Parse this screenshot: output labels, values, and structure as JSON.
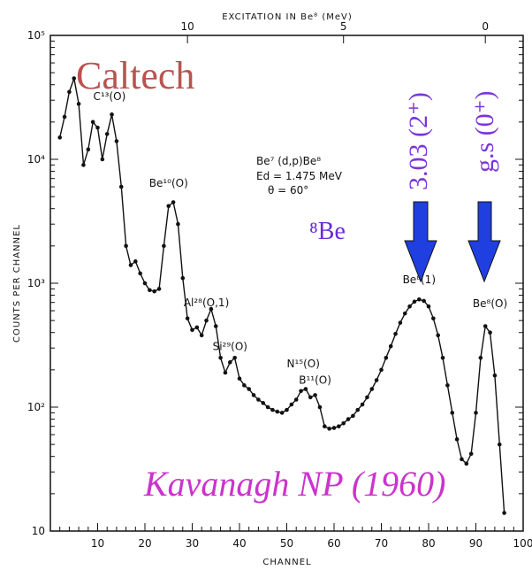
{
  "chart_data": {
    "type": "scatter",
    "xlabel": "CHANNEL",
    "ylabel": "COUNTS PER CHANNEL",
    "top_axis_label": "EXCITATION IN Be⁸ (MeV)",
    "xlim": [
      0,
      100
    ],
    "ylim": [
      10,
      100000
    ],
    "y_scale": "log",
    "x_ticks": [
      "10",
      "20",
      "30",
      "40",
      "50",
      "60",
      "70",
      "80",
      "90",
      "100"
    ],
    "y_ticks": [
      "10",
      "10²",
      "10³",
      "10⁴",
      "10⁵"
    ],
    "top_ticks": [
      {
        "label": "10",
        "channel": 29
      },
      {
        "label": "5",
        "channel": 62
      },
      {
        "label": "0",
        "channel": 92
      }
    ],
    "reaction": {
      "line1": "Be⁷ (d,p)Be⁸",
      "line2": "Ed = 1.475 MeV",
      "line3": "θ = 60°"
    },
    "peak_labels": [
      {
        "text": "C¹³(O)",
        "x": 12.5,
        "y": 30000
      },
      {
        "text": "Be¹⁰(O)",
        "x": 25,
        "y": 6000
      },
      {
        "text": "Al²⁸(O,1)",
        "x": 33,
        "y": 650
      },
      {
        "text": "Si²⁹(O)",
        "x": 38,
        "y": 290
      },
      {
        "text": "N¹⁵(O)",
        "x": 53.5,
        "y": 210
      },
      {
        "text": "B¹¹(O)",
        "x": 56,
        "y": 155
      },
      {
        "text": "Be⁸(1)",
        "x": 78,
        "y": 1000
      },
      {
        "text": "Be⁸(O)",
        "x": 93,
        "y": 640
      }
    ],
    "annotations": {
      "institution": "Caltech",
      "citation": "Kavanagh  NP (1960)",
      "nucleus": "⁸Be",
      "level_1": "3.03 (2⁺)",
      "level_2": "g.s (0⁺)"
    },
    "series": [
      {
        "values": [
          [
            2,
            15000
          ],
          [
            3,
            22000
          ],
          [
            4,
            35000
          ],
          [
            5,
            45000
          ],
          [
            6,
            28000
          ],
          [
            7,
            9000
          ],
          [
            8,
            12000
          ],
          [
            9,
            20000
          ],
          [
            10,
            18000
          ],
          [
            11,
            10000
          ],
          [
            12,
            16000
          ],
          [
            13,
            23000
          ],
          [
            14,
            14000
          ],
          [
            15,
            6000
          ],
          [
            16,
            2000
          ],
          [
            17,
            1400
          ],
          [
            18,
            1500
          ],
          [
            19,
            1200
          ],
          [
            20,
            1000
          ],
          [
            21,
            880
          ],
          [
            22,
            860
          ],
          [
            23,
            900
          ],
          [
            24,
            2000
          ],
          [
            25,
            4200
          ],
          [
            26,
            4500
          ],
          [
            27,
            3000
          ],
          [
            28,
            1100
          ],
          [
            29,
            520
          ],
          [
            30,
            420
          ],
          [
            31,
            440
          ],
          [
            32,
            380
          ],
          [
            33,
            500
          ],
          [
            34,
            620
          ],
          [
            35,
            450
          ],
          [
            36,
            250
          ],
          [
            37,
            190
          ],
          [
            38,
            230
          ],
          [
            39,
            250
          ],
          [
            40,
            170
          ],
          [
            41,
            150
          ],
          [
            42,
            140
          ],
          [
            43,
            125
          ],
          [
            44,
            115
          ],
          [
            45,
            108
          ],
          [
            46,
            100
          ],
          [
            47,
            95
          ],
          [
            48,
            92
          ],
          [
            49,
            90
          ],
          [
            50,
            95
          ],
          [
            51,
            105
          ],
          [
            52,
            115
          ],
          [
            53,
            135
          ],
          [
            54,
            140
          ],
          [
            55,
            120
          ],
          [
            56,
            125
          ],
          [
            57,
            100
          ],
          [
            58,
            70
          ],
          [
            59,
            67
          ],
          [
            60,
            68
          ],
          [
            61,
            70
          ],
          [
            62,
            74
          ],
          [
            63,
            80
          ],
          [
            64,
            85
          ],
          [
            65,
            95
          ],
          [
            66,
            105
          ],
          [
            67,
            120
          ],
          [
            68,
            140
          ],
          [
            69,
            165
          ],
          [
            70,
            200
          ],
          [
            71,
            250
          ],
          [
            72,
            310
          ],
          [
            73,
            390
          ],
          [
            74,
            480
          ],
          [
            75,
            570
          ],
          [
            76,
            650
          ],
          [
            77,
            710
          ],
          [
            78,
            740
          ],
          [
            79,
            720
          ],
          [
            80,
            650
          ],
          [
            81,
            520
          ],
          [
            82,
            380
          ],
          [
            83,
            250
          ],
          [
            84,
            150
          ],
          [
            85,
            90
          ],
          [
            86,
            55
          ],
          [
            87,
            38
          ],
          [
            88,
            35
          ],
          [
            89,
            42
          ],
          [
            90,
            90
          ],
          [
            91,
            250
          ],
          [
            92,
            450
          ],
          [
            93,
            400
          ],
          [
            94,
            180
          ],
          [
            95,
            50
          ],
          [
            96,
            14
          ]
        ]
      }
    ]
  }
}
